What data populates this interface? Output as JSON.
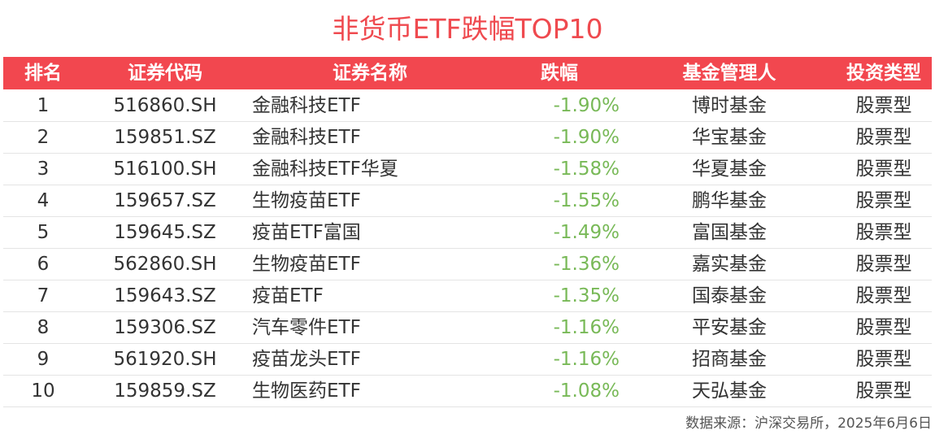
{
  "title": "非货币ETF跌幅TOP10",
  "table": {
    "headers": [
      "排名",
      "证券代码",
      "证券名称",
      "跌幅",
      "基金管理人",
      "投资类型"
    ],
    "rows": [
      [
        "1",
        "516860.SH",
        "金融科技ETF",
        "-1.90%",
        "博时基金",
        "股票型"
      ],
      [
        "2",
        "159851.SZ",
        "金融科技ETF",
        "-1.90%",
        "华宝基金",
        "股票型"
      ],
      [
        "3",
        "516100.SH",
        "金融科技ETF华夏",
        "-1.58%",
        "华夏基金",
        "股票型"
      ],
      [
        "4",
        "159657.SZ",
        "生物疫苗ETF",
        "-1.55%",
        "鹏华基金",
        "股票型"
      ],
      [
        "5",
        "159645.SZ",
        "疫苗ETF富国",
        "-1.49%",
        "富国基金",
        "股票型"
      ],
      [
        "6",
        "562860.SH",
        "生物疫苗ETF",
        "-1.36%",
        "嘉实基金",
        "股票型"
      ],
      [
        "7",
        "159643.SZ",
        "疫苗ETF",
        "-1.35%",
        "国泰基金",
        "股票型"
      ],
      [
        "8",
        "159306.SZ",
        "汽车零件ETF",
        "-1.16%",
        "平安基金",
        "股票型"
      ],
      [
        "9",
        "561920.SH",
        "疫苗龙头ETF",
        "-1.16%",
        "招商基金",
        "股票型"
      ],
      [
        "10",
        "159859.SZ",
        "生物医药ETF",
        "-1.08%",
        "天弘基金",
        "股票型"
      ]
    ]
  },
  "source": "数据来源：沪深交易所，2025年6月6日"
}
